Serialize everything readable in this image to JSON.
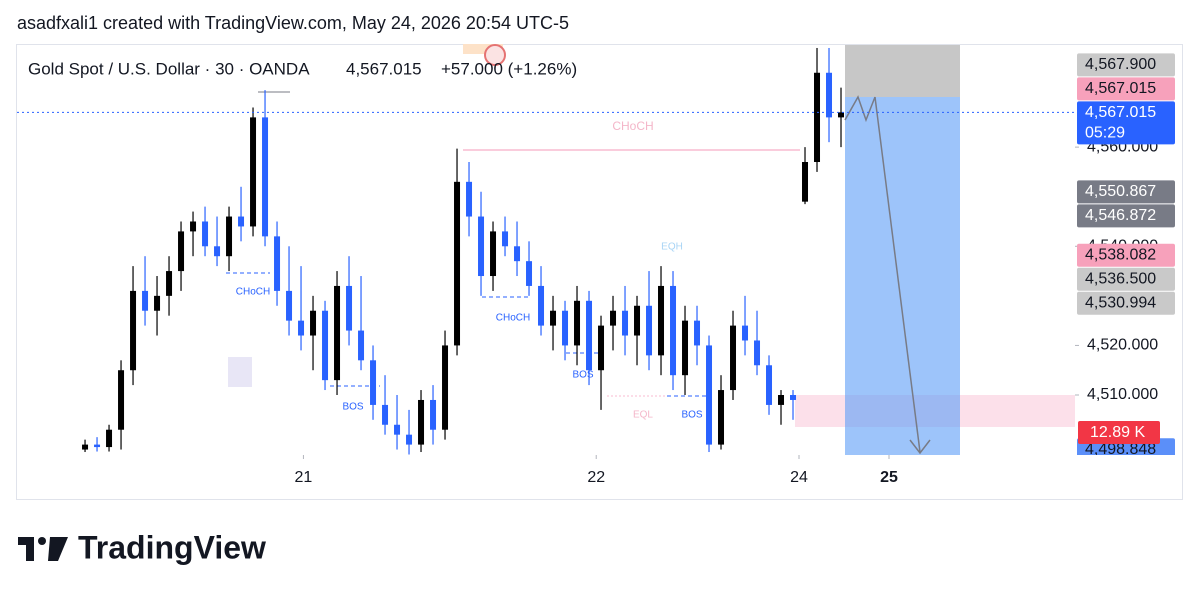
{
  "header": {
    "caption": "asadfxali1 created with TradingView.com, May 24, 2026 20:54 UTC-5"
  },
  "chart_data": {
    "type": "candlestick",
    "legend": {
      "symbol": "Gold Spot / U.S. Dollar · 30 · OANDA",
      "price": "4,567.015",
      "change": "+57.000 (+1.26%)"
    },
    "up_color": "#000000",
    "down_color": "#2962ff",
    "candles": [
      [
        4499,
        4501,
        4498.5,
        4500
      ],
      [
        4500,
        4501.5,
        4498.6,
        4499.5
      ],
      [
        4499.5,
        4504,
        4498.6,
        4503
      ],
      [
        4503,
        4517,
        4499,
        4515
      ],
      [
        4515,
        4536,
        4512,
        4531
      ],
      [
        4531,
        4538,
        4524,
        4527
      ],
      [
        4527,
        4534,
        4522,
        4530
      ],
      [
        4530,
        4538,
        4526,
        4535
      ],
      [
        4535,
        4545,
        4531,
        4543
      ],
      [
        4543,
        4547,
        4538,
        4545
      ],
      [
        4545,
        4548,
        4538,
        4540
      ],
      [
        4540,
        4546,
        4536,
        4538
      ],
      [
        4538,
        4548,
        4535,
        4546
      ],
      [
        4546,
        4552,
        4541,
        4544
      ],
      [
        4544,
        4568,
        4542,
        4566
      ],
      [
        4566,
        4571.5,
        4540,
        4542
      ],
      [
        4542,
        4545,
        4528,
        4531
      ],
      [
        4531,
        4540,
        4522,
        4525
      ],
      [
        4525,
        4536,
        4519,
        4522
      ],
      [
        4522,
        4530,
        4515,
        4527
      ],
      [
        4527,
        4529,
        4511,
        4513
      ],
      [
        4513,
        4535,
        4510,
        4532
      ],
      [
        4532,
        4538,
        4520,
        4523
      ],
      [
        4523,
        4534,
        4515,
        4517
      ],
      [
        4517,
        4520,
        4505,
        4508
      ],
      [
        4508,
        4514,
        4502,
        4504
      ],
      [
        4504,
        4510,
        4499,
        4502
      ],
      [
        4502,
        4507,
        4498,
        4500
      ],
      [
        4500,
        4511,
        4498.5,
        4509
      ],
      [
        4509,
        4512,
        4500,
        4503
      ],
      [
        4503,
        4523,
        4501,
        4520
      ],
      [
        4520,
        4559.7,
        4518,
        4553
      ],
      [
        4553,
        4557,
        4542,
        4546
      ],
      [
        4546,
        4551,
        4530,
        4534
      ],
      [
        4534,
        4545,
        4531,
        4543
      ],
      [
        4543,
        4546,
        4538,
        4540
      ],
      [
        4540,
        4545,
        4534,
        4537
      ],
      [
        4537,
        4541,
        4530,
        4532
      ],
      [
        4532,
        4536,
        4522,
        4524
      ],
      [
        4524,
        4530,
        4519,
        4527
      ],
      [
        4527,
        4529,
        4517,
        4520
      ],
      [
        4520,
        4532,
        4516,
        4529
      ],
      [
        4529,
        4531,
        4512,
        4515
      ],
      [
        4515,
        4526,
        4507,
        4524
      ],
      [
        4524,
        4530,
        4519,
        4527
      ],
      [
        4527,
        4532,
        4518,
        4522
      ],
      [
        4522,
        4530,
        4516,
        4528
      ],
      [
        4528,
        4535,
        4515,
        4518
      ],
      [
        4518,
        4536,
        4514,
        4532
      ],
      [
        4532,
        4535,
        4511,
        4514
      ],
      [
        4514,
        4528,
        4510,
        4525
      ],
      [
        4525,
        4528,
        4516,
        4520
      ],
      [
        4520,
        4522,
        4498.5,
        4500
      ],
      [
        4500,
        4514,
        4499,
        4511
      ],
      [
        4511,
        4527,
        4509,
        4524
      ],
      [
        4524,
        4530,
        4518,
        4521
      ],
      [
        4521,
        4527,
        4514,
        4516
      ],
      [
        4516,
        4518,
        4506,
        4508
      ],
      [
        4508,
        4511,
        4504,
        4510
      ],
      [
        4510,
        4511,
        4505,
        4509
      ],
      [
        4549,
        4560,
        4548.5,
        4557
      ],
      [
        4557,
        4580,
        4555,
        4575
      ],
      [
        4575,
        4580,
        4561,
        4566
      ],
      [
        4566,
        4572,
        4560,
        4567.015
      ]
    ],
    "ylim": [
      4497.9,
      4580.6
    ],
    "yticks": [
      {
        "value": 4510,
        "label": "4,510.000"
      },
      {
        "value": 4520,
        "label": "4,520.000"
      },
      {
        "value": 4540,
        "label": "4,540.000"
      },
      {
        "value": 4560,
        "label": "4,560.000"
      }
    ],
    "xlim": [
      -5.67,
      82.5
    ],
    "xticks": [
      {
        "value": 18.2,
        "label": "21"
      },
      {
        "value": 42.6,
        "label": "22"
      },
      {
        "value": 59.5,
        "label": "24"
      },
      {
        "value": 67,
        "label": "25"
      }
    ],
    "price_labels": [
      {
        "value": 4567.9,
        "label": "4,567.900",
        "color": "#c9c9c9",
        "text_color": "#131722"
      },
      {
        "value": 4567.015,
        "label": "4,567.015",
        "color": "#f7a1bb",
        "text_color": "#131722"
      },
      {
        "value": 4567.015,
        "label": "4,567.015",
        "color": "#2962ff",
        "text_color": "#ffffff",
        "countdown": "05:29"
      },
      {
        "value": 4550.867,
        "label": "4,550.867",
        "color": "#787b86",
        "text_color": "#ffffff"
      },
      {
        "value": 4546.872,
        "label": "4,546.872",
        "color": "#787b86",
        "text_color": "#ffffff"
      },
      {
        "value": 4538.082,
        "label": "4,538.082",
        "color": "#f7a1bb",
        "text_color": "#131722"
      },
      {
        "value": 4536.5,
        "label": "4,536.500",
        "color": "#c9c9c9",
        "text_color": "#131722"
      },
      {
        "value": 4530.994,
        "label": "4,530.994",
        "color": "#c9c9c9",
        "text_color": "#131722"
      },
      {
        "value": 4498.848,
        "label": "4,498.848",
        "color": "#5b8ff9",
        "text_color": "#131722"
      }
    ],
    "position_size": "12.89 K",
    "annotations": [
      "CHoCH",
      "CHoCH",
      "CHoCH",
      "BOS",
      "BOS",
      "BOS",
      "EQH",
      "EQL"
    ]
  },
  "footer": {
    "brand": "TradingView"
  }
}
